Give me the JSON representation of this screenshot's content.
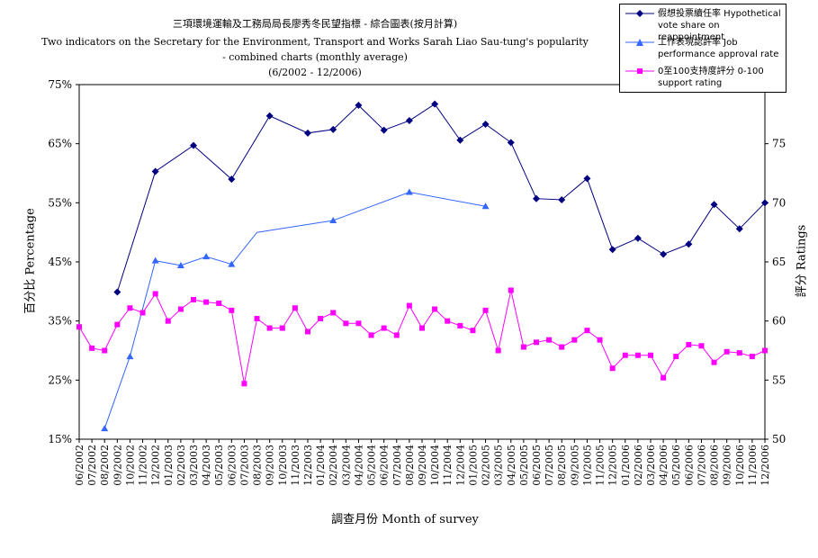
{
  "titles": {
    "line1": "三項環境運輸及工務局局長廖秀冬民望指標 - 綜合圖表(按月計算)",
    "line2": "Two indicators on the Secretary for the Environment, Transport and Works Sarah Liao Sau-tung's popularity",
    "line3": "- combined charts (monthly average)",
    "line4": "(6/2002 - 12/2006)"
  },
  "axis_labels": {
    "x": "調查月份  Month of survey",
    "y_left": "百分比  Percentage",
    "y_right": "評分  Ratings"
  },
  "legend": [
    {
      "line1": "假想投票續任率 Hypothetical",
      "line2": "vote share on reappointment",
      "color": "#000080",
      "marker": "diamond"
    },
    {
      "line1": "工作表現認許率 Job",
      "line2": "performance approval rate",
      "color": "#3366ff",
      "marker": "triangle"
    },
    {
      "line1": "0至100支持度評分 0-100",
      "line2": "support rating",
      "color": "#ff00ff",
      "marker": "square"
    }
  ],
  "chart_data": {
    "type": "line",
    "x_labels": [
      "06/2002",
      "07/2002",
      "08/2002",
      "09/2002",
      "10/2002",
      "11/2002",
      "12/2002",
      "01/2003",
      "02/2003",
      "03/2003",
      "04/2003",
      "05/2003",
      "06/2003",
      "07/2003",
      "08/2003",
      "09/2003",
      "10/2003",
      "11/2003",
      "12/2003",
      "01/2004",
      "02/2004",
      "03/2004",
      "04/2004",
      "05/2004",
      "06/2004",
      "07/2004",
      "08/2004",
      "09/2004",
      "10/2004",
      "11/2004",
      "12/2004",
      "01/2005",
      "02/2005",
      "03/2005",
      "04/2005",
      "05/2005",
      "06/2005",
      "07/2005",
      "08/2005",
      "09/2005",
      "10/2005",
      "11/2005",
      "12/2005",
      "01/2006",
      "02/2006",
      "03/2006",
      "04/2006",
      "05/2006",
      "06/2006",
      "07/2006",
      "08/2006",
      "09/2006",
      "10/2006",
      "11/2006",
      "12/2006"
    ],
    "y_left": {
      "min": 15,
      "max": 75,
      "step": 10,
      "ticks": [
        "15%",
        "25%",
        "35%",
        "45%",
        "55%",
        "65%",
        "75%"
      ]
    },
    "y_right": {
      "min": 50,
      "max": 80,
      "step": 5,
      "ticks": [
        "50",
        "55",
        "60",
        "65",
        "70",
        "75"
      ]
    },
    "series": [
      {
        "name": "假想投票續任率 Hypothetical vote share on reappointment",
        "axis": "left",
        "color": "#000080",
        "marker": "diamond",
        "points": [
          [
            3,
            39.9
          ],
          [
            6,
            60.3
          ],
          [
            9,
            64.7
          ],
          [
            12,
            59.0
          ],
          [
            15,
            69.7
          ],
          [
            18,
            66.8
          ],
          [
            20,
            67.4
          ],
          [
            22,
            71.5
          ],
          [
            24,
            67.3
          ],
          [
            26,
            68.9
          ],
          [
            28,
            71.7
          ],
          [
            30,
            65.6
          ],
          [
            32,
            68.3
          ],
          [
            34,
            65.2
          ],
          [
            36,
            55.7
          ],
          [
            38,
            55.5
          ],
          [
            40,
            59.1
          ],
          [
            42,
            47.1
          ],
          [
            44,
            49.0
          ],
          [
            46,
            46.3
          ],
          [
            48,
            48.0
          ],
          [
            50,
            54.7
          ],
          [
            52,
            50.6
          ],
          [
            54,
            55.0
          ]
        ]
      },
      {
        "name": "工作表現認許率 Job performance approval rate",
        "axis": "left",
        "color": "#3366ff",
        "marker": "triangle",
        "points": [
          [
            2,
            16.8
          ],
          [
            4,
            29.0
          ],
          [
            6,
            45.2
          ],
          [
            8,
            44.4
          ],
          [
            10,
            45.9
          ],
          [
            12,
            44.6
          ],
          [
            14,
            50.0
          ],
          [
            20,
            52.0
          ],
          [
            26,
            56.8
          ],
          [
            32,
            54.4
          ]
        ],
        "marked": [
          2,
          4,
          6,
          8,
          10,
          12,
          20,
          26,
          32
        ]
      },
      {
        "name": "0至100支持度評分 0-100 support rating",
        "axis": "right",
        "color": "#ff00ff",
        "marker": "square",
        "points": [
          [
            0,
            59.5
          ],
          [
            1,
            57.7
          ],
          [
            2,
            57.5
          ],
          [
            3,
            59.7
          ],
          [
            4,
            61.1
          ],
          [
            5,
            60.7
          ],
          [
            6,
            62.3
          ],
          [
            7,
            60.0
          ],
          [
            8,
            61.0
          ],
          [
            9,
            61.8
          ],
          [
            10,
            61.6
          ],
          [
            11,
            61.5
          ],
          [
            12,
            60.9
          ],
          [
            13,
            54.7
          ],
          [
            14,
            60.2
          ],
          [
            15,
            59.4
          ],
          [
            16,
            59.4
          ],
          [
            17,
            61.1
          ],
          [
            18,
            59.1
          ],
          [
            19,
            60.2
          ],
          [
            20,
            60.7
          ],
          [
            21,
            59.8
          ],
          [
            22,
            59.8
          ],
          [
            23,
            58.8
          ],
          [
            24,
            59.4
          ],
          [
            25,
            58.8
          ],
          [
            26,
            61.3
          ],
          [
            27,
            59.4
          ],
          [
            28,
            61.0
          ],
          [
            29,
            60.0
          ],
          [
            30,
            59.6
          ],
          [
            31,
            59.2
          ],
          [
            32,
            60.9
          ],
          [
            33,
            57.5
          ],
          [
            34,
            62.6
          ],
          [
            35,
            57.8
          ],
          [
            36,
            58.2
          ],
          [
            37,
            58.4
          ],
          [
            38,
            57.8
          ],
          [
            39,
            58.4
          ],
          [
            40,
            59.2
          ],
          [
            41,
            58.4
          ],
          [
            42,
            56.0
          ],
          [
            43,
            57.1
          ],
          [
            44,
            57.1
          ],
          [
            45,
            57.1
          ],
          [
            46,
            55.2
          ],
          [
            47,
            57.0
          ],
          [
            48,
            58.0
          ],
          [
            49,
            57.9
          ],
          [
            50,
            56.5
          ],
          [
            51,
            57.4
          ],
          [
            52,
            57.3
          ],
          [
            53,
            57.0
          ],
          [
            54,
            57.5
          ]
        ]
      }
    ]
  }
}
